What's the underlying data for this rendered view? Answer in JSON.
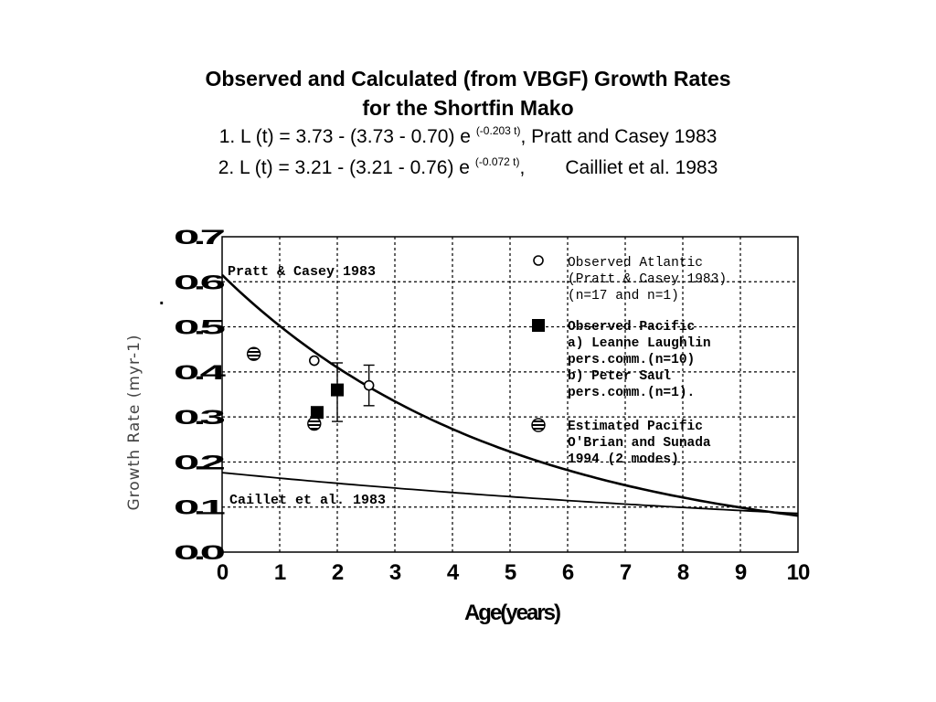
{
  "heading": {
    "title_line1": "Observed and Calculated (from VBGF) Growth Rates",
    "title_line2": "for the Shortfin Mako",
    "eq1_main": "1. L (t) = 3.73 - (3.73 - 0.70) e",
    "eq1_exp": "(-0.203 t)",
    "eq1_ref": ", Pratt and Casey 1983",
    "eq2_main": "2. L (t) = 3.21 - (3.21 - 0.76) e",
    "eq2_exp": "(-0.072 t)",
    "eq2_comma": ",",
    "eq2_ref": "Cailliet et al. 1983"
  },
  "chart_data": {
    "type": "scatter",
    "xlabel": "Age(years)",
    "ylabel": "Growth Rate (myr-1)",
    "xlim": [
      0,
      10
    ],
    "ylim": [
      0,
      0.7
    ],
    "x_ticks": [
      0,
      1,
      2,
      3,
      4,
      5,
      6,
      7,
      8,
      9,
      10
    ],
    "x_tick_labels": [
      "0",
      "1",
      "2",
      "3",
      "4",
      "5",
      "6",
      "7",
      "8",
      "9",
      "10"
    ],
    "y_ticks": [
      0,
      0.1,
      0.2,
      0.3,
      0.4,
      0.5,
      0.6,
      0.7
    ],
    "y_tick_labels": [
      "0.0",
      "0.1",
      "0.2",
      "0.3",
      "0.4",
      "0.5",
      "0.6",
      "0.7"
    ],
    "grid": true,
    "curves": [
      {
        "label": "Pratt & Casey 1983",
        "L_inf": 3.73,
        "L0": 0.7,
        "k": 0.203
      },
      {
        "label": "Caillet et al. 1983",
        "L_inf": 3.21,
        "L0": 0.76,
        "k": 0.072
      }
    ],
    "series": [
      {
        "name": "Observed Atlantic (Pratt & Casey 1983) (n=17 and n=1)",
        "marker": "open-circle",
        "points": [
          {
            "x": 1.6,
            "y": 0.425,
            "err": null
          },
          {
            "x": 2.55,
            "y": 0.37,
            "err": [
              0.325,
              0.415
            ]
          }
        ]
      },
      {
        "name": "Observed Pacific a) Leanne Laughlin pers.comm.(n=10) b) Peter Saul pers.comm.(n=1).",
        "marker": "filled-square",
        "points": [
          {
            "x": 1.65,
            "y": 0.31,
            "err": null
          },
          {
            "x": 2.0,
            "y": 0.36,
            "err": [
              0.29,
              0.42
            ]
          }
        ]
      },
      {
        "name": "Estimated Pacific O'Brian and Sunada 1994 (2 modes)",
        "marker": "hatched-circle",
        "points": [
          {
            "x": 0.55,
            "y": 0.44,
            "err": null
          },
          {
            "x": 1.6,
            "y": 0.285,
            "err": null
          }
        ]
      }
    ],
    "legend": {
      "placement": "top-right",
      "atlantic": [
        "Observed Atlantic",
        "(Pratt & Casey 1983)",
        "(n=17 and n=1)"
      ],
      "pacific": [
        "Observed Pacific",
        "a) Leanne Laughlin",
        "pers.comm.(n=10)",
        "b) Peter Saul",
        "pers.comm.(n=1)."
      ],
      "estimated": [
        "Estimated Pacific",
        "O'Brian and Sunada",
        "1994 (2 modes)"
      ]
    },
    "dot_mark": "."
  }
}
